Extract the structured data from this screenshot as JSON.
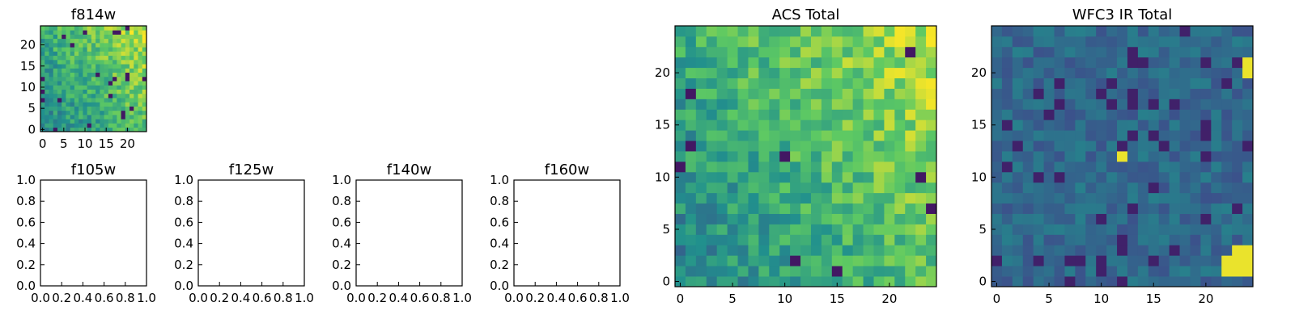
{
  "colormap": [
    "#440154",
    "#3b528b",
    "#21908d",
    "#5dc963",
    "#fde725"
  ],
  "chart_data": [
    {
      "type": "heatmap",
      "title": "f814w",
      "grid_size": 25,
      "value_range": [
        0,
        1
      ],
      "xlim": [
        -0.5,
        24.5
      ],
      "ylim": [
        -0.5,
        24.5
      ],
      "xticks": [
        "0",
        "5",
        "10",
        "15",
        "20"
      ],
      "yticks": [
        "0",
        "5",
        "10",
        "15",
        "20"
      ],
      "description": "noisy field, mostly green with a bright yellow gradient toward the upper-right corner"
    },
    {
      "type": "empty",
      "title": "f105w",
      "xlim": [
        0,
        1
      ],
      "ylim": [
        0,
        1
      ],
      "xticks": [
        "0.0",
        "0.2",
        "0.4",
        "0.6",
        "0.8",
        "1.0"
      ],
      "yticks": [
        "0.0",
        "0.2",
        "0.4",
        "0.6",
        "0.8",
        "1.0"
      ]
    },
    {
      "type": "empty",
      "title": "f125w",
      "xlim": [
        0,
        1
      ],
      "ylim": [
        0,
        1
      ],
      "xticks": [
        "0.0",
        "0.2",
        "0.4",
        "0.6",
        "0.8",
        "1.0"
      ],
      "yticks": [
        "0.0",
        "0.2",
        "0.4",
        "0.6",
        "0.8",
        "1.0"
      ]
    },
    {
      "type": "empty",
      "title": "f140w",
      "xlim": [
        0,
        1
      ],
      "ylim": [
        0,
        1
      ],
      "xticks": [
        "0.0",
        "0.2",
        "0.4",
        "0.6",
        "0.8",
        "1.0"
      ],
      "yticks": [
        "0.0",
        "0.2",
        "0.4",
        "0.6",
        "0.8",
        "1.0"
      ]
    },
    {
      "type": "empty",
      "title": "f160w",
      "xlim": [
        0,
        1
      ],
      "ylim": [
        0,
        1
      ],
      "xticks": [
        "0.0",
        "0.2",
        "0.4",
        "0.6",
        "0.8",
        "1.0"
      ],
      "yticks": [
        "0.0",
        "0.2",
        "0.4",
        "0.6",
        "0.8",
        "1.0"
      ]
    },
    {
      "type": "heatmap",
      "title": "ACS Total",
      "grid_size": 25,
      "value_range": [
        0,
        1
      ],
      "xlim": [
        -0.5,
        24.5
      ],
      "ylim": [
        -0.5,
        24.5
      ],
      "xticks": [
        "0",
        "5",
        "10",
        "15",
        "20"
      ],
      "yticks": [
        "0",
        "5",
        "10",
        "15",
        "20"
      ],
      "description": "noisy green field brightening to yellow in the upper-right"
    },
    {
      "type": "heatmap",
      "title": "WFC3 IR Total",
      "grid_size": 25,
      "value_range": [
        0,
        1
      ],
      "xlim": [
        -0.5,
        24.5
      ],
      "ylim": [
        -0.5,
        24.5
      ],
      "xticks": [
        "0",
        "5",
        "10",
        "15",
        "20"
      ],
      "yticks": [
        "0",
        "5",
        "10",
        "15",
        "20"
      ],
      "description": "mostly dark blue-teal field with a bright yellow patch in the lower-right and a few bright pixels",
      "bright_cells": [
        [
          22,
          1
        ],
        [
          23,
          1
        ],
        [
          24,
          1
        ],
        [
          22,
          2
        ],
        [
          23,
          2
        ],
        [
          24,
          2
        ],
        [
          23,
          3
        ],
        [
          24,
          3
        ],
        [
          12,
          12
        ],
        [
          24,
          21
        ],
        [
          24,
          20
        ]
      ]
    }
  ]
}
